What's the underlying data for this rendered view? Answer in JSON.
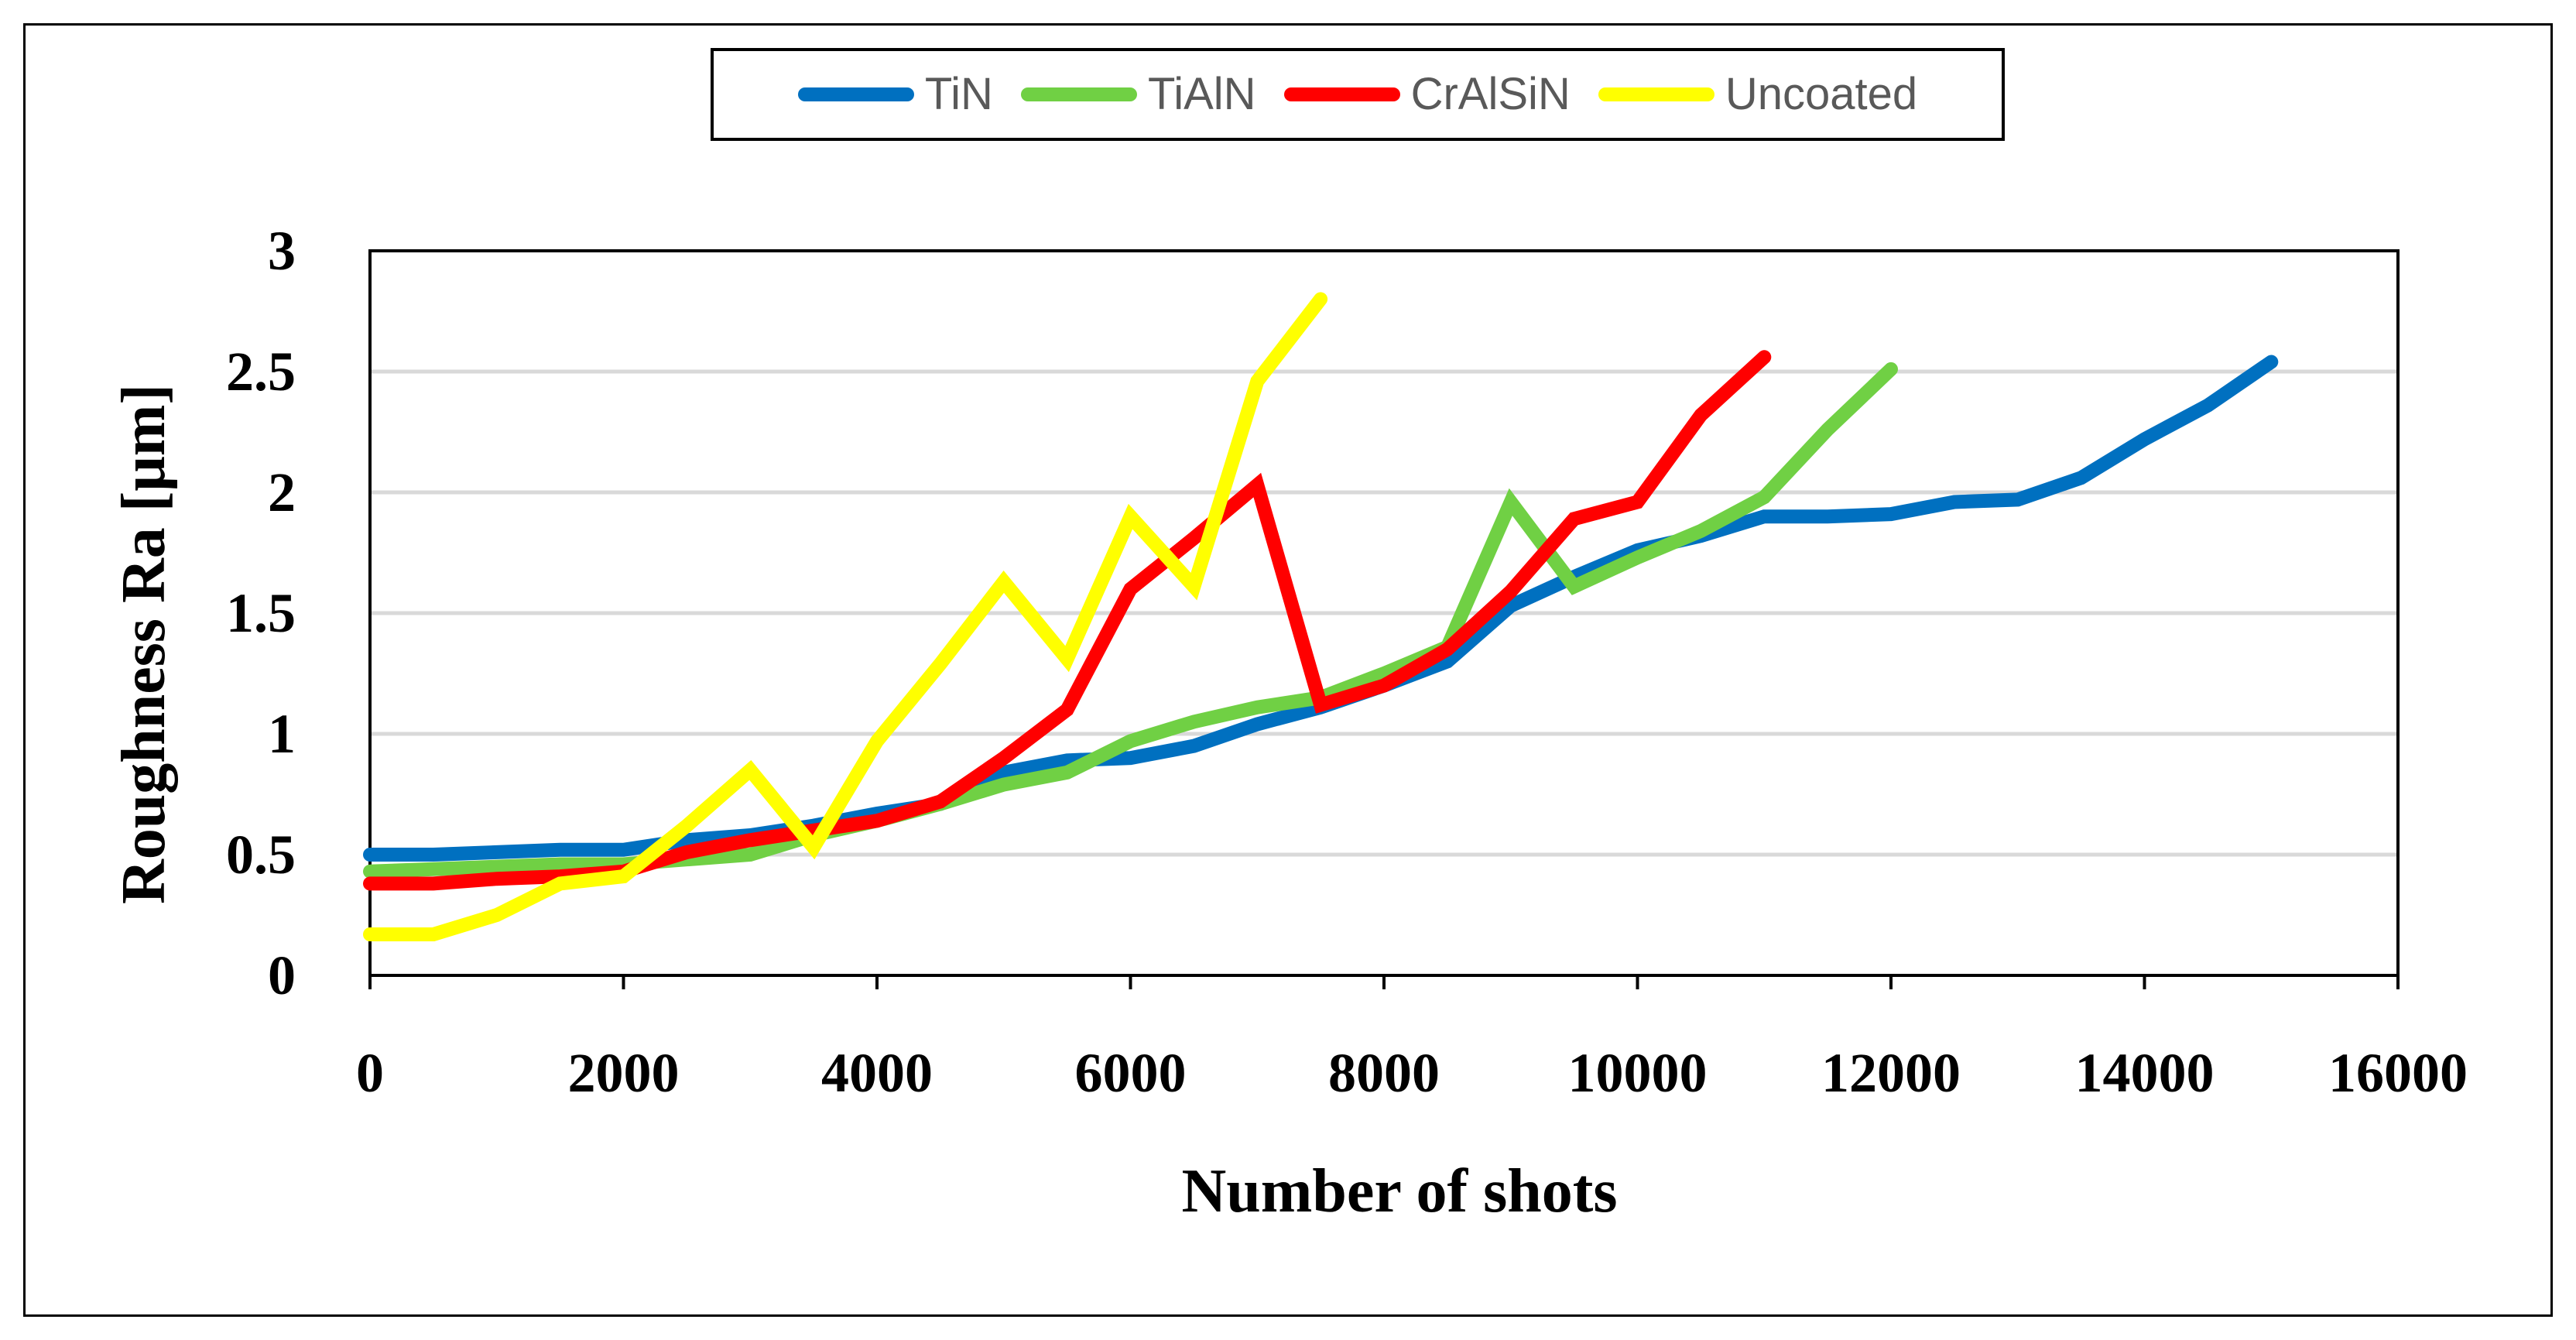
{
  "chart_data": {
    "type": "line",
    "title": "",
    "xlabel": "Number of shots",
    "ylabel": "Roughness Ra [μm]",
    "xlim": [
      0,
      16000
    ],
    "ylim": [
      0,
      3
    ],
    "xticks": [
      0,
      2000,
      4000,
      6000,
      8000,
      10000,
      12000,
      14000,
      16000
    ],
    "yticks": [
      0,
      0.5,
      1,
      1.5,
      2,
      2.5,
      3
    ],
    "grid": "horizontal",
    "legend_position": "top",
    "series": [
      {
        "name": "TiN",
        "color": "#0070C0",
        "x": [
          0,
          500,
          1000,
          1500,
          2000,
          2500,
          3000,
          3500,
          4000,
          4500,
          5000,
          5500,
          6000,
          6500,
          7000,
          7500,
          8000,
          8500,
          9000,
          9500,
          10000,
          10500,
          11000,
          11500,
          12000,
          12500,
          13000,
          13500,
          14000,
          14500,
          15000
        ],
        "values": [
          0.5,
          0.5,
          0.51,
          0.52,
          0.52,
          0.56,
          0.58,
          0.62,
          0.67,
          0.71,
          0.84,
          0.89,
          0.9,
          0.95,
          1.04,
          1.11,
          1.2,
          1.3,
          1.53,
          1.65,
          1.76,
          1.82,
          1.9,
          1.9,
          1.91,
          1.96,
          1.97,
          2.06,
          2.22,
          2.36,
          2.54
        ]
      },
      {
        "name": "TiAlN",
        "color": "#70D044",
        "x": [
          0,
          500,
          1000,
          1500,
          2000,
          2500,
          3000,
          3500,
          4000,
          4500,
          5000,
          5500,
          6000,
          6500,
          7000,
          7500,
          8000,
          8500,
          9000,
          9500,
          10000,
          10500,
          11000,
          11500,
          12000
        ],
        "values": [
          0.43,
          0.44,
          0.45,
          0.46,
          0.46,
          0.48,
          0.5,
          0.58,
          0.64,
          0.71,
          0.79,
          0.84,
          0.97,
          1.05,
          1.11,
          1.15,
          1.25,
          1.36,
          1.96,
          1.61,
          1.73,
          1.84,
          1.98,
          2.26,
          2.51
        ]
      },
      {
        "name": "CrAlSiN",
        "color": "#FF0000",
        "x": [
          0,
          500,
          1000,
          1500,
          2000,
          2500,
          3000,
          3500,
          4000,
          4500,
          5000,
          5500,
          6000,
          6500,
          7000,
          7500,
          8000,
          8500,
          9000,
          9500,
          10000,
          10500,
          11000
        ],
        "values": [
          0.38,
          0.38,
          0.4,
          0.41,
          0.43,
          0.51,
          0.56,
          0.6,
          0.64,
          0.72,
          0.9,
          1.1,
          1.6,
          1.81,
          2.03,
          1.12,
          1.2,
          1.35,
          1.59,
          1.89,
          1.96,
          2.32,
          2.56
        ]
      },
      {
        "name": "Uncoated",
        "color": "#FFFF00",
        "x": [
          0,
          500,
          1000,
          1500,
          2000,
          2500,
          3000,
          3500,
          4000,
          4500,
          5000,
          5500,
          6000,
          6500,
          7000,
          7500
        ],
        "values": [
          0.17,
          0.17,
          0.25,
          0.38,
          0.41,
          0.62,
          0.85,
          0.53,
          0.97,
          1.29,
          1.63,
          1.31,
          1.9,
          1.61,
          2.46,
          2.8
        ]
      }
    ]
  }
}
